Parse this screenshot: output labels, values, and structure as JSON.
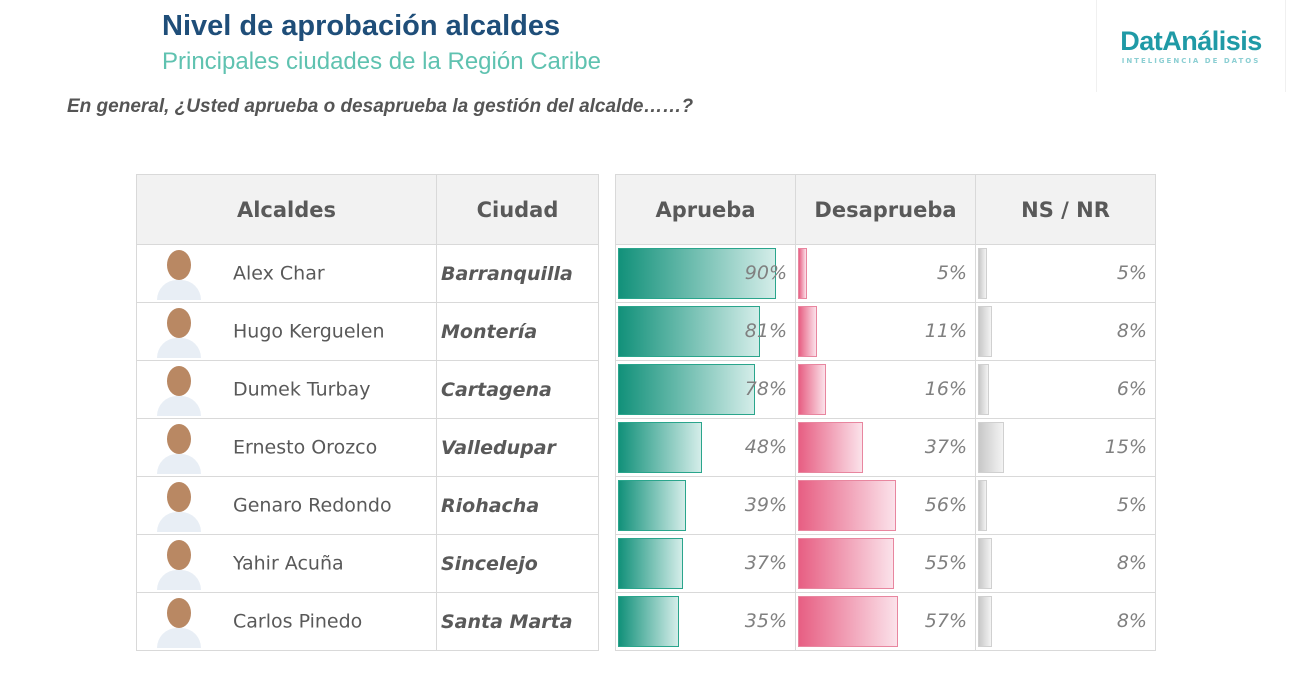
{
  "header": {
    "title": "Nivel de aprobación alcaldes",
    "subtitle": "Principales ciudades de la Región Caribe",
    "question": "En general, ¿Usted aprueba o desaprueba la gestión del alcalde……?"
  },
  "logo": {
    "brand": "DatAnálisis",
    "tagline": "INTELIGENCIA DE DATOS"
  },
  "colors": {
    "aprueba": "#12917a",
    "desaprueba": "#e75f83",
    "nsnr": "#c8c8c8"
  },
  "chart_data": {
    "type": "table",
    "columns": [
      "Alcaldes",
      "Ciudad",
      "Aprueba",
      "Desaprueba",
      "NS / NR"
    ],
    "rows": [
      {
        "alcalde": "Alex Char",
        "ciudad": "Barranquilla",
        "aprueba": 90,
        "desaprueba": 5,
        "nsnr": 5,
        "labels": [
          "90%",
          "5%",
          "5%"
        ]
      },
      {
        "alcalde": "Hugo Kerguelen",
        "ciudad": "Montería",
        "aprueba": 81,
        "desaprueba": 11,
        "nsnr": 8,
        "labels": [
          "81%",
          "11%",
          "8%"
        ]
      },
      {
        "alcalde": "Dumek Turbay",
        "ciudad": "Cartagena",
        "aprueba": 78,
        "desaprueba": 16,
        "nsnr": 6,
        "labels": [
          "78%",
          "16%",
          "6%"
        ]
      },
      {
        "alcalde": "Ernesto Orozco",
        "ciudad": "Valledupar",
        "aprueba": 48,
        "desaprueba": 37,
        "nsnr": 15,
        "labels": [
          "48%",
          "37%",
          "15%"
        ]
      },
      {
        "alcalde": "Genaro Redondo",
        "ciudad": "Riohacha",
        "aprueba": 39,
        "desaprueba": 56,
        "nsnr": 5,
        "labels": [
          "39%",
          "56%",
          "5%"
        ]
      },
      {
        "alcalde": "Yahir Acuña",
        "ciudad": "Sincelejo",
        "aprueba": 37,
        "desaprueba": 55,
        "nsnr": 8,
        "labels": [
          "37%",
          "55%",
          "8%"
        ]
      },
      {
        "alcalde": "Carlos Pinedo",
        "ciudad": "Santa Marta",
        "aprueba": 35,
        "desaprueba": 57,
        "nsnr": 8,
        "labels": [
          "35%",
          "57%",
          "8%"
        ]
      }
    ]
  }
}
